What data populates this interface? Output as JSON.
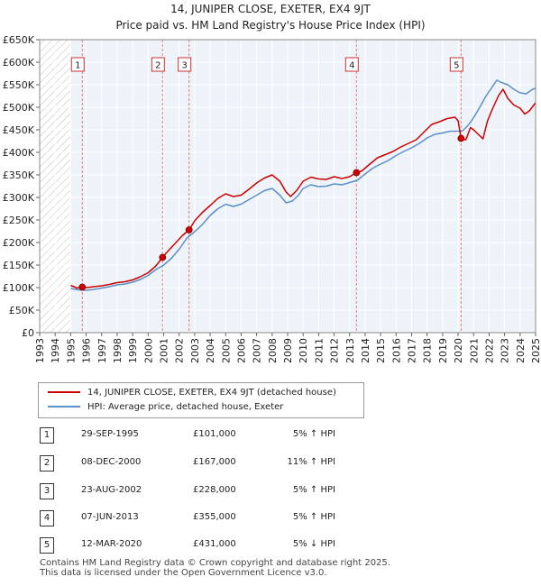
{
  "chart_title": "14, JUNIPER CLOSE, EXETER, EX4 9JT",
  "chart_subtitle": "Price paid vs. HM Land Registry's House Price Index (HPI)",
  "colors": {
    "price_line": "#cc0000",
    "hpi_line": "#5b8fc9",
    "vline": "#e08080",
    "hatch": "#bbbbbb",
    "plot_bg": "#eef3fa"
  },
  "legend": {
    "red_label": "14, JUNIPER CLOSE, EXETER, EX4 9JT (detached house)",
    "blue_label": "HPI: Average price, detached house, Exeter"
  },
  "sales": [
    {
      "num": "1",
      "date": "29-SEP-1995",
      "price": "£101,000",
      "hpi": "5% ↑ HPI"
    },
    {
      "num": "2",
      "date": "08-DEC-2000",
      "price": "£167,000",
      "hpi": "11% ↑ HPI"
    },
    {
      "num": "3",
      "date": "23-AUG-2002",
      "price": "£228,000",
      "hpi": "5% ↑ HPI"
    },
    {
      "num": "4",
      "date": "07-JUN-2013",
      "price": "£355,000",
      "hpi": "5% ↑ HPI"
    },
    {
      "num": "5",
      "date": "12-MAR-2020",
      "price": "£431,000",
      "hpi": "5% ↓ HPI"
    }
  ],
  "footer": {
    "line1": "Contains HM Land Registry data © Crown copyright and database right 2025.",
    "line2": "This data is licensed under the Open Government Licence v3.0."
  },
  "chart_data": {
    "type": "line",
    "title": "14, JUNIPER CLOSE, EXETER, EX4 9JT",
    "subtitle": "Price paid vs. HM Land Registry's House Price Index (HPI)",
    "xlim": [
      1993,
      2025
    ],
    "ylim": [
      0,
      650000
    ],
    "y_ticks": [
      0,
      50000,
      100000,
      150000,
      200000,
      250000,
      300000,
      350000,
      400000,
      450000,
      500000,
      550000,
      600000,
      650000
    ],
    "y_tick_labels": [
      "£0",
      "£50K",
      "£100K",
      "£150K",
      "£200K",
      "£250K",
      "£300K",
      "£350K",
      "£400K",
      "£450K",
      "£500K",
      "£550K",
      "£600K",
      "£650K"
    ],
    "x_ticks": [
      1993,
      1994,
      1995,
      1996,
      1997,
      1998,
      1999,
      2000,
      2001,
      2002,
      2003,
      2004,
      2005,
      2006,
      2007,
      2008,
      2009,
      2010,
      2011,
      2012,
      2013,
      2014,
      2015,
      2016,
      2017,
      2018,
      2019,
      2020,
      2021,
      2022,
      2023,
      2024,
      2025
    ],
    "hatched_until": 1995.0,
    "series": [
      {
        "name": "14, JUNIPER CLOSE, EXETER, EX4 9JT (detached house)",
        "points": [
          [
            1995.0,
            105000
          ],
          [
            1995.4,
            99000
          ],
          [
            1995.75,
            101000
          ],
          [
            1996.0,
            100000
          ],
          [
            1996.5,
            102000
          ],
          [
            1997.0,
            104000
          ],
          [
            1997.5,
            107000
          ],
          [
            1998.0,
            111000
          ],
          [
            1998.5,
            113000
          ],
          [
            1999.0,
            117000
          ],
          [
            1999.5,
            124000
          ],
          [
            2000.0,
            133000
          ],
          [
            2000.5,
            148000
          ],
          [
            2000.93,
            167000
          ],
          [
            2001.3,
            182000
          ],
          [
            2001.8,
            200000
          ],
          [
            2002.2,
            215000
          ],
          [
            2002.64,
            228000
          ],
          [
            2003.0,
            248000
          ],
          [
            2003.5,
            267000
          ],
          [
            2004.0,
            282000
          ],
          [
            2004.5,
            298000
          ],
          [
            2005.0,
            308000
          ],
          [
            2005.5,
            302000
          ],
          [
            2006.0,
            305000
          ],
          [
            2006.5,
            318000
          ],
          [
            2007.0,
            332000
          ],
          [
            2007.5,
            343000
          ],
          [
            2008.0,
            350000
          ],
          [
            2008.5,
            336000
          ],
          [
            2008.9,
            312000
          ],
          [
            2009.2,
            302000
          ],
          [
            2009.6,
            316000
          ],
          [
            2010.0,
            336000
          ],
          [
            2010.5,
            345000
          ],
          [
            2011.0,
            341000
          ],
          [
            2011.5,
            340000
          ],
          [
            2012.0,
            346000
          ],
          [
            2012.5,
            342000
          ],
          [
            2013.0,
            346000
          ],
          [
            2013.44,
            355000
          ],
          [
            2013.8,
            359000
          ],
          [
            2014.3,
            374000
          ],
          [
            2014.8,
            388000
          ],
          [
            2015.3,
            395000
          ],
          [
            2015.8,
            402000
          ],
          [
            2016.3,
            412000
          ],
          [
            2016.8,
            420000
          ],
          [
            2017.3,
            428000
          ],
          [
            2017.8,
            445000
          ],
          [
            2018.3,
            462000
          ],
          [
            2018.8,
            468000
          ],
          [
            2019.3,
            475000
          ],
          [
            2019.8,
            478000
          ],
          [
            2020.0,
            470000
          ],
          [
            2020.19,
            431000
          ],
          [
            2020.5,
            428000
          ],
          [
            2020.8,
            455000
          ],
          [
            2021.0,
            450000
          ],
          [
            2021.3,
            440000
          ],
          [
            2021.6,
            430000
          ],
          [
            2021.9,
            470000
          ],
          [
            2022.2,
            495000
          ],
          [
            2022.6,
            525000
          ],
          [
            2022.9,
            540000
          ],
          [
            2023.2,
            520000
          ],
          [
            2023.6,
            505000
          ],
          [
            2024.0,
            498000
          ],
          [
            2024.3,
            485000
          ],
          [
            2024.6,
            492000
          ],
          [
            2025.0,
            510000
          ]
        ]
      },
      {
        "name": "HPI: Average price, detached house, Exeter",
        "points": [
          [
            1995.0,
            98000
          ],
          [
            1995.5,
            95000
          ],
          [
            1996.0,
            94000
          ],
          [
            1996.5,
            96000
          ],
          [
            1997.0,
            99000
          ],
          [
            1997.5,
            102000
          ],
          [
            1998.0,
            106000
          ],
          [
            1998.5,
            108000
          ],
          [
            1999.0,
            112000
          ],
          [
            1999.5,
            118000
          ],
          [
            2000.0,
            127000
          ],
          [
            2000.5,
            140000
          ],
          [
            2001.0,
            150000
          ],
          [
            2001.5,
            165000
          ],
          [
            2002.0,
            185000
          ],
          [
            2002.5,
            210000
          ],
          [
            2003.0,
            224000
          ],
          [
            2003.5,
            240000
          ],
          [
            2004.0,
            260000
          ],
          [
            2004.5,
            275000
          ],
          [
            2005.0,
            285000
          ],
          [
            2005.5,
            280000
          ],
          [
            2006.0,
            285000
          ],
          [
            2006.5,
            295000
          ],
          [
            2007.0,
            305000
          ],
          [
            2007.5,
            315000
          ],
          [
            2008.0,
            320000
          ],
          [
            2008.5,
            305000
          ],
          [
            2008.9,
            288000
          ],
          [
            2009.3,
            292000
          ],
          [
            2009.7,
            305000
          ],
          [
            2010.0,
            320000
          ],
          [
            2010.5,
            328000
          ],
          [
            2011.0,
            324000
          ],
          [
            2011.5,
            325000
          ],
          [
            2012.0,
            330000
          ],
          [
            2012.5,
            328000
          ],
          [
            2013.0,
            333000
          ],
          [
            2013.5,
            338000
          ],
          [
            2014.0,
            352000
          ],
          [
            2014.5,
            365000
          ],
          [
            2015.0,
            374000
          ],
          [
            2015.5,
            382000
          ],
          [
            2016.0,
            393000
          ],
          [
            2016.5,
            402000
          ],
          [
            2017.0,
            410000
          ],
          [
            2017.5,
            420000
          ],
          [
            2018.0,
            432000
          ],
          [
            2018.5,
            440000
          ],
          [
            2019.0,
            443000
          ],
          [
            2019.5,
            447000
          ],
          [
            2020.0,
            447000
          ],
          [
            2020.3,
            448000
          ],
          [
            2020.7,
            462000
          ],
          [
            2021.0,
            477000
          ],
          [
            2021.4,
            500000
          ],
          [
            2021.8,
            525000
          ],
          [
            2022.2,
            545000
          ],
          [
            2022.5,
            560000
          ],
          [
            2022.8,
            555000
          ],
          [
            2023.2,
            550000
          ],
          [
            2023.6,
            540000
          ],
          [
            2024.0,
            532000
          ],
          [
            2024.4,
            530000
          ],
          [
            2024.8,
            540000
          ],
          [
            2025.0,
            542000
          ]
        ]
      }
    ],
    "sale_markers": [
      {
        "label": "1",
        "x": 1995.75,
        "y": 101000
      },
      {
        "label": "2",
        "x": 2000.93,
        "y": 167000
      },
      {
        "label": "3",
        "x": 2002.64,
        "y": 228000
      },
      {
        "label": "4",
        "x": 2013.44,
        "y": 355000
      },
      {
        "label": "5",
        "x": 2020.19,
        "y": 431000
      }
    ]
  }
}
